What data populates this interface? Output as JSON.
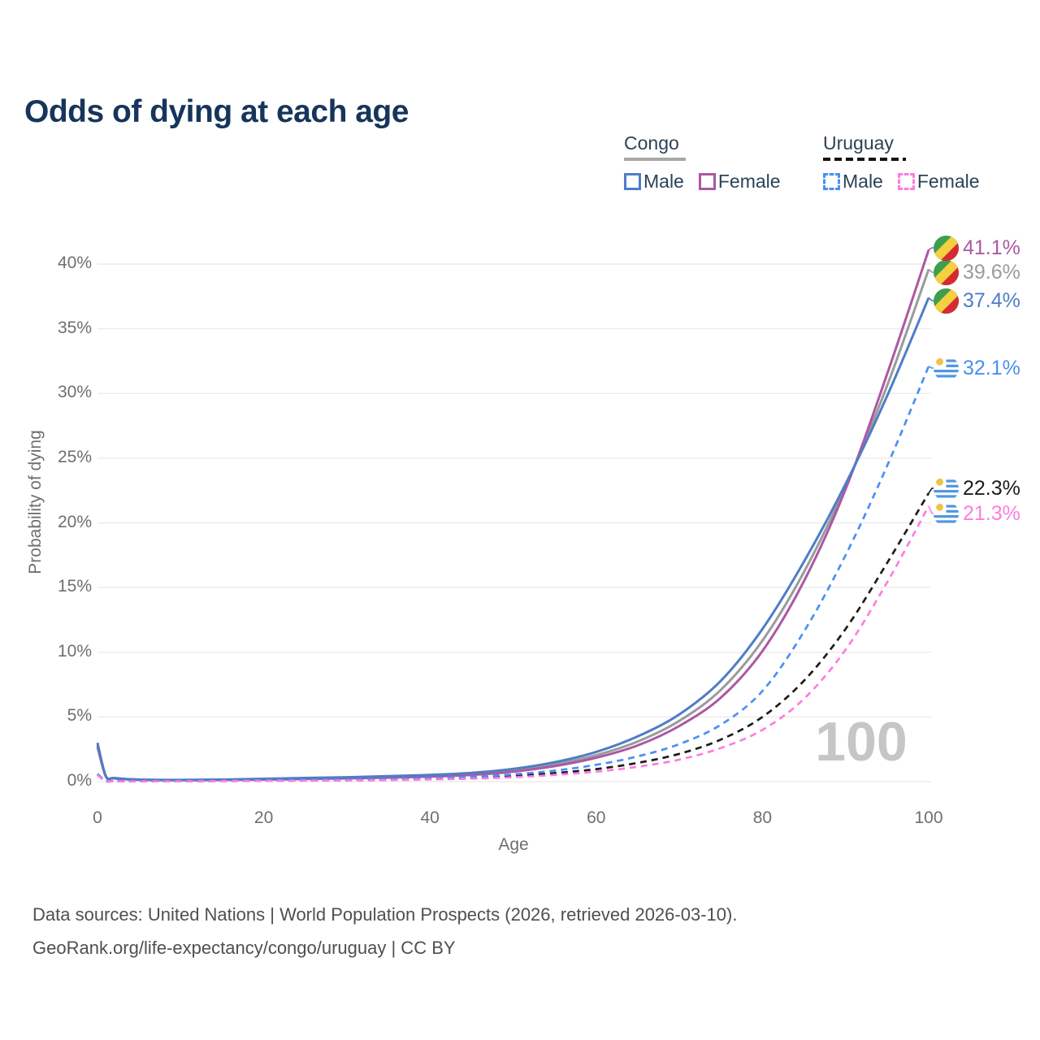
{
  "title": "Odds of dying at each age",
  "legend": {
    "groups": [
      {
        "country": "Congo",
        "line_style": "solid",
        "line_color": "#a8a8a8",
        "items": [
          {
            "label": "Male",
            "color": "#4e7dc6",
            "style": "solid"
          },
          {
            "label": "Female",
            "color": "#ac58a2",
            "style": "solid"
          }
        ]
      },
      {
        "country": "Uruguay",
        "line_style": "dashed",
        "line_color": "#141414",
        "items": [
          {
            "label": "Male",
            "color": "#4b8ff2",
            "style": "dashed"
          },
          {
            "label": "Female",
            "color": "#ff7ce0",
            "style": "dashed"
          }
        ]
      }
    ]
  },
  "chart_data": {
    "type": "line",
    "title": "Odds of dying at each age",
    "xlabel": "Age",
    "ylabel": "Probability of dying",
    "xlim": [
      0,
      100
    ],
    "ylim": [
      0,
      42
    ],
    "grid": "horizontal",
    "x_ticks": [
      "0",
      "20",
      "40",
      "60",
      "80",
      "100"
    ],
    "y_ticks": [
      "0%",
      "5%",
      "10%",
      "15%",
      "20%",
      "25%",
      "30%",
      "35%",
      "40%"
    ],
    "age_indicator": "100",
    "x": [
      0,
      1,
      2,
      5,
      10,
      15,
      20,
      25,
      30,
      35,
      40,
      45,
      50,
      55,
      60,
      65,
      70,
      75,
      80,
      85,
      90,
      95,
      100
    ],
    "series": [
      {
        "name": "Congo Both sexes",
        "country": "Congo",
        "sex": "both",
        "color": "#9b9b9b",
        "dash": "solid",
        "flag": "congo",
        "end_label": "39.6%",
        "values": [
          2.85,
          0.43,
          0.26,
          0.15,
          0.12,
          0.14,
          0.19,
          0.24,
          0.29,
          0.36,
          0.45,
          0.6,
          0.87,
          1.35,
          2.05,
          3.1,
          4.7,
          7.1,
          10.9,
          16.2,
          22.8,
          30.6,
          39.6
        ]
      },
      {
        "name": "Congo Female",
        "country": "Congo",
        "sex": "female",
        "color": "#ac58a2",
        "dash": "solid",
        "flag": "congo",
        "end_label": "41.1%",
        "values": [
          2.7,
          0.41,
          0.25,
          0.14,
          0.11,
          0.13,
          0.16,
          0.2,
          0.25,
          0.31,
          0.39,
          0.52,
          0.77,
          1.2,
          1.85,
          2.8,
          4.3,
          6.5,
          10.1,
          15.5,
          22.6,
          31.5,
          41.1
        ]
      },
      {
        "name": "Congo Male",
        "country": "Congo",
        "sex": "male",
        "color": "#4e7dc6",
        "dash": "solid",
        "flag": "congo",
        "end_label": "37.4%",
        "values": [
          3.0,
          0.45,
          0.28,
          0.16,
          0.13,
          0.16,
          0.22,
          0.28,
          0.34,
          0.42,
          0.52,
          0.68,
          0.98,
          1.5,
          2.3,
          3.5,
          5.2,
          7.8,
          11.8,
          17.0,
          23.0,
          29.8,
          37.4
        ]
      },
      {
        "name": "Uruguay Both sexes",
        "country": "Uruguay",
        "sex": "both",
        "color": "#1c1c1c",
        "dash": "dashed",
        "flag": "uruguay",
        "end_label": "22.3%",
        "values": [
          0.55,
          0.05,
          0.035,
          0.025,
          0.03,
          0.055,
          0.09,
          0.1,
          0.12,
          0.16,
          0.21,
          0.29,
          0.44,
          0.66,
          0.97,
          1.45,
          2.15,
          3.25,
          5.0,
          7.8,
          11.8,
          16.9,
          22.3
        ]
      },
      {
        "name": "Uruguay Male",
        "country": "Uruguay",
        "sex": "male",
        "color": "#4b8ff2",
        "dash": "dashed",
        "flag": "uruguay",
        "end_label": "32.1%",
        "values": [
          0.6,
          0.06,
          0.04,
          0.03,
          0.035,
          0.07,
          0.11,
          0.13,
          0.16,
          0.2,
          0.27,
          0.38,
          0.56,
          0.85,
          1.3,
          1.95,
          2.9,
          4.4,
          7.0,
          11.6,
          17.5,
          24.4,
          32.1
        ]
      },
      {
        "name": "Uruguay Female",
        "country": "Uruguay",
        "sex": "female",
        "color": "#ff7ce0",
        "dash": "dashed",
        "flag": "uruguay",
        "end_label": "21.3%",
        "values": [
          0.5,
          0.045,
          0.03,
          0.02,
          0.025,
          0.035,
          0.055,
          0.07,
          0.09,
          0.12,
          0.17,
          0.23,
          0.34,
          0.52,
          0.77,
          1.15,
          1.7,
          2.6,
          4.0,
          6.4,
          10.2,
          15.4,
          21.3
        ]
      }
    ],
    "legend_position": "top-right"
  },
  "footer": {
    "line1": "Data sources: United Nations | World Population Prospects (2026, retrieved 2026-03-10).",
    "line2": "GeoRank.org/life-expectancy/congo/uruguay | CC BY"
  }
}
